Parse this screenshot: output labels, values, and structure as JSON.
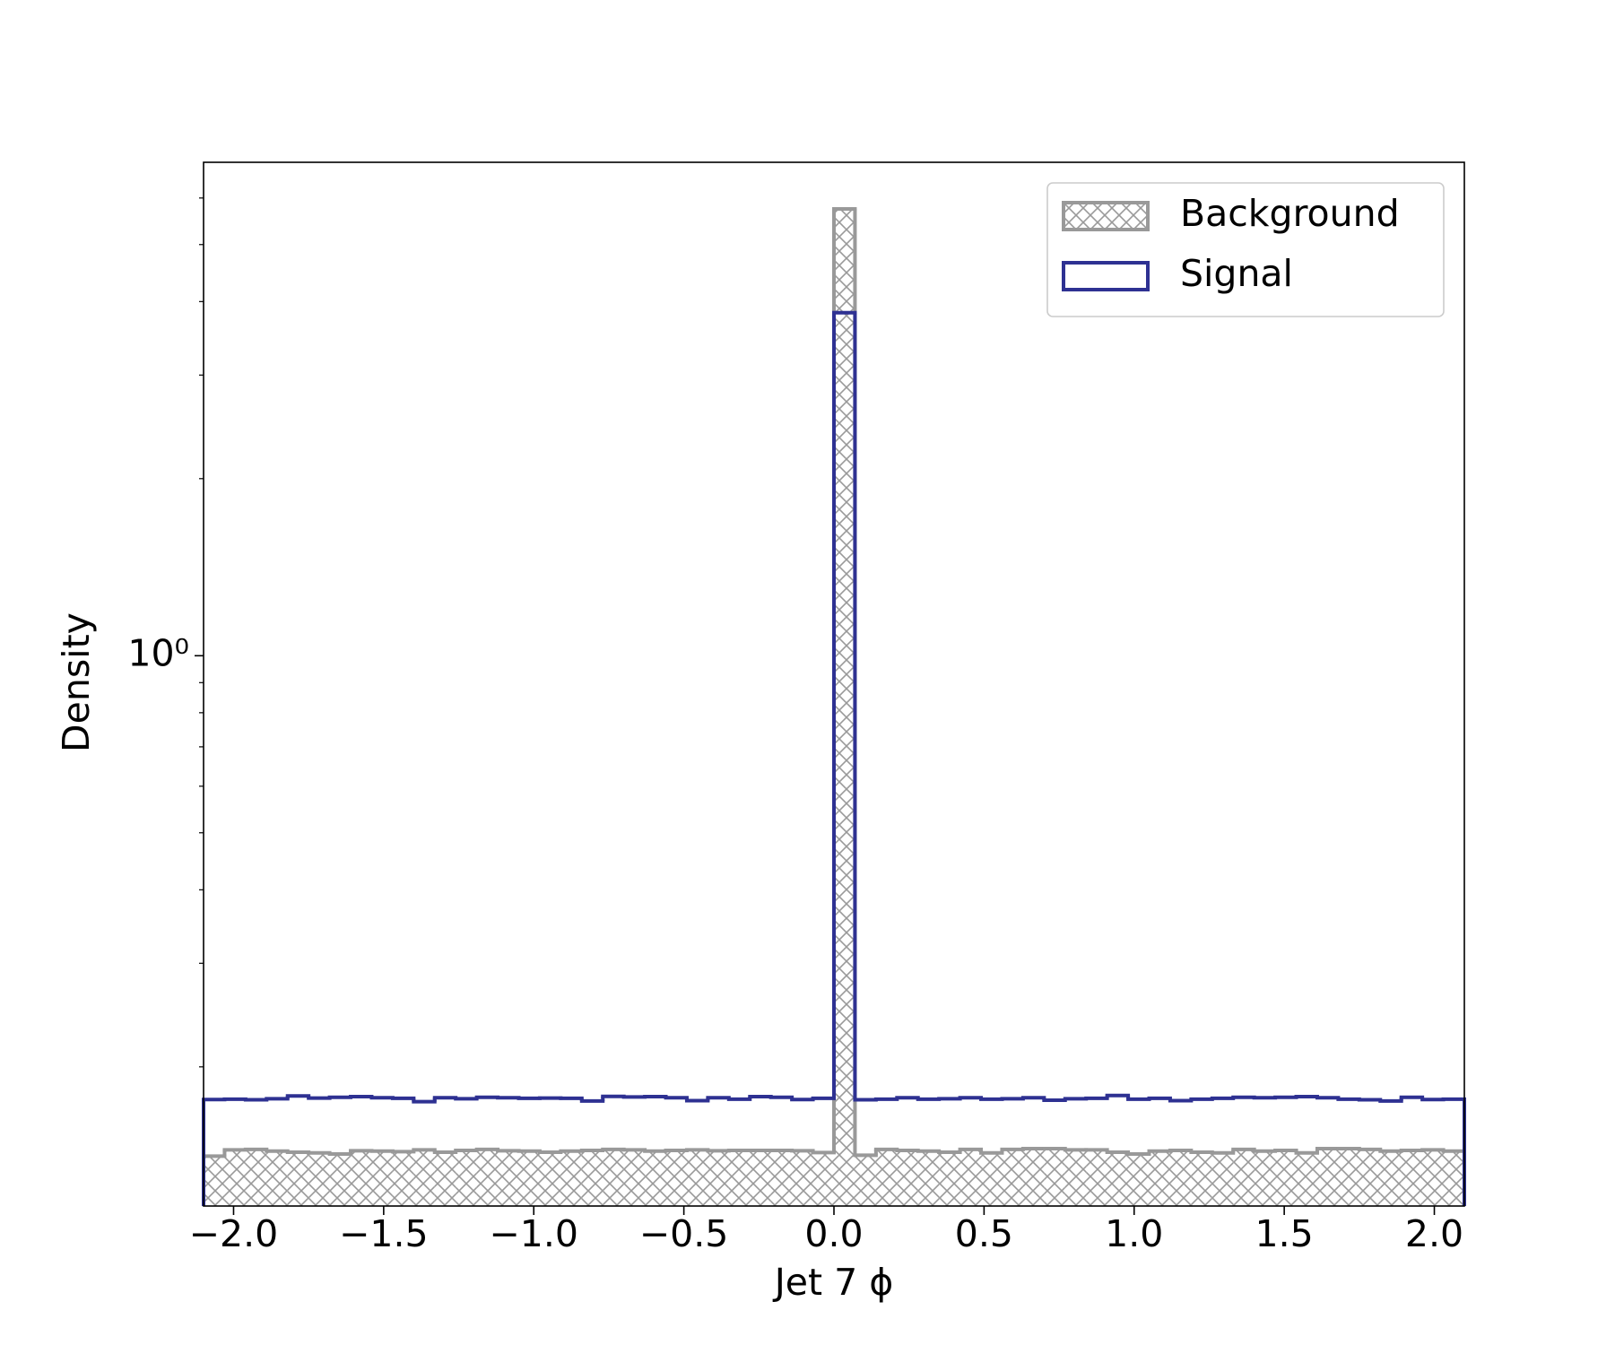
{
  "chart_data": {
    "type": "histogram",
    "xlabel": "Jet 7 ϕ",
    "ylabel": "Density",
    "bins": [
      -2.1,
      -2.03,
      -1.96,
      -1.89,
      -1.82,
      -1.75,
      -1.68,
      -1.61,
      -1.54,
      -1.47,
      -1.4,
      -1.33,
      -1.26,
      -1.19,
      -1.12,
      -1.05,
      -0.98,
      -0.91,
      -0.84,
      -0.77,
      -0.7,
      -0.63,
      -0.56,
      -0.49,
      -0.42,
      -0.35,
      -0.28,
      -0.21,
      -0.14,
      -0.07,
      0,
      0.07,
      0.14,
      0.21,
      0.28,
      0.35,
      0.42,
      0.49,
      0.56,
      0.63,
      0.7,
      0.77,
      0.84,
      0.91,
      0.98,
      1.05,
      1.12,
      1.19,
      1.26,
      1.33,
      1.4,
      1.47,
      1.54,
      1.61,
      1.68,
      1.75,
      1.82,
      1.89,
      1.96,
      2.03,
      2.1
    ],
    "series": [
      {
        "name": "Background",
        "color": "#999999",
        "hatch": true,
        "values": [
          0.141,
          0.1445,
          0.1448,
          0.1438,
          0.1432,
          0.1428,
          0.1422,
          0.144,
          0.1438,
          0.1435,
          0.1445,
          0.1432,
          0.1442,
          0.1448,
          0.144,
          0.1438,
          0.1432,
          0.1438,
          0.1442,
          0.1448,
          0.1445,
          0.1438,
          0.1442,
          0.1445,
          0.144,
          0.1442,
          0.1442,
          0.1442,
          0.144,
          0.143,
          5.75,
          0.1415,
          0.1448,
          0.1442,
          0.1438,
          0.1432,
          0.1448,
          0.1428,
          0.1448,
          0.1452,
          0.1452,
          0.1445,
          0.1445,
          0.1432,
          0.1422,
          0.1438,
          0.1442,
          0.1432,
          0.1428,
          0.1448,
          0.1438,
          0.1442,
          0.1428,
          0.1452,
          0.1452,
          0.1448,
          0.1438,
          0.1442,
          0.1445,
          0.1438
        ]
      },
      {
        "name": "Signal",
        "color": "#2e3192",
        "hatch": false,
        "values": [
          0.176,
          0.1762,
          0.1758,
          0.1765,
          0.1785,
          0.177,
          0.1775,
          0.178,
          0.1772,
          0.1768,
          0.1745,
          0.1772,
          0.1765,
          0.1775,
          0.1772,
          0.1768,
          0.177,
          0.1768,
          0.175,
          0.1782,
          0.1778,
          0.178,
          0.1772,
          0.1752,
          0.1772,
          0.1762,
          0.178,
          0.1775,
          0.176,
          0.1768,
          3.83,
          0.1758,
          0.1762,
          0.1772,
          0.1762,
          0.1765,
          0.1772,
          0.1762,
          0.1765,
          0.1772,
          0.1755,
          0.1765,
          0.1768,
          0.1788,
          0.1762,
          0.1768,
          0.1752,
          0.1762,
          0.1768,
          0.1775,
          0.1772,
          0.1775,
          0.178,
          0.1772,
          0.1762,
          0.1758,
          0.175,
          0.1775,
          0.176,
          0.1762
        ]
      }
    ],
    "xlim": [
      -2.1,
      2.1
    ],
    "xticks": [
      {
        "value": -2,
        "label": "−2.0"
      },
      {
        "value": -1.5,
        "label": "−1.5"
      },
      {
        "value": -1,
        "label": "−1.0"
      },
      {
        "value": -0.5,
        "label": "−0.5"
      },
      {
        "value": 0,
        "label": "0.0"
      },
      0.5,
      {
        "value": 1,
        "label": "1.0"
      },
      1.5,
      {
        "value": 2,
        "label": "2.0"
      }
    ],
    "ylim": [
      0.116,
      6.9
    ],
    "ylog": true,
    "yticks": [
      {
        "value": 1,
        "label": "10⁰"
      }
    ],
    "yminorticks": [
      0.2,
      0.3,
      0.4,
      0.5,
      0.6,
      0.7,
      0.8,
      0.9,
      2,
      3,
      4,
      5,
      6
    ],
    "legend": "upper right"
  }
}
